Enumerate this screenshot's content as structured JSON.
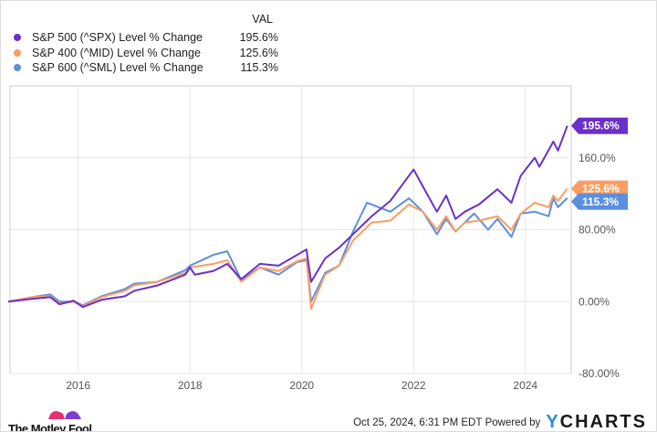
{
  "legend": {
    "header": "VAL"
  },
  "footer": {
    "brand": "The Motley Fool",
    "timestamp": "Oct 25, 2024, 6:31 PM EDT",
    "powered_by": "Powered by",
    "ycharts_y": "Y",
    "ycharts_rest": "CHARTS"
  },
  "chart_data": {
    "type": "line",
    "xlim": [
      "2014-10",
      "2024-10"
    ],
    "ylim": [
      -80,
      240
    ],
    "grid": true,
    "legend_placement": "top-left",
    "x_ticks": [
      "2016",
      "2018",
      "2020",
      "2022",
      "2024"
    ],
    "y_ticks": [
      {
        "v": 160,
        "label": "160.0%"
      },
      {
        "v": 80,
        "label": "80.00%"
      },
      {
        "v": 0,
        "label": "0.00%"
      },
      {
        "v": -80,
        "label": "-80.00%"
      }
    ],
    "series": [
      {
        "name": "S&P 500 (^SPX) Level % Change",
        "value_label": "195.6%",
        "color": "#6b2fcc",
        "points": [
          [
            "2014-10",
            0
          ],
          [
            "2015-03",
            3
          ],
          [
            "2015-07",
            5
          ],
          [
            "2015-09",
            -3
          ],
          [
            "2015-12",
            1
          ],
          [
            "2016-02",
            -6
          ],
          [
            "2016-06",
            2
          ],
          [
            "2016-11",
            6
          ],
          [
            "2017-01",
            12
          ],
          [
            "2017-06",
            18
          ],
          [
            "2017-12",
            30
          ],
          [
            "2018-01",
            38
          ],
          [
            "2018-02",
            30
          ],
          [
            "2018-06",
            34
          ],
          [
            "2018-09",
            42
          ],
          [
            "2018-12",
            25
          ],
          [
            "2019-04",
            42
          ],
          [
            "2019-08",
            40
          ],
          [
            "2019-12",
            52
          ],
          [
            "2020-02",
            58
          ],
          [
            "2020-03",
            22
          ],
          [
            "2020-06",
            48
          ],
          [
            "2020-09",
            60
          ],
          [
            "2020-12",
            75
          ],
          [
            "2021-04",
            95
          ],
          [
            "2021-08",
            112
          ],
          [
            "2021-12",
            140
          ],
          [
            "2022-01",
            147
          ],
          [
            "2022-03",
            128
          ],
          [
            "2022-06",
            100
          ],
          [
            "2022-08",
            118
          ],
          [
            "2022-10",
            92
          ],
          [
            "2022-12",
            100
          ],
          [
            "2023-03",
            108
          ],
          [
            "2023-07",
            125
          ],
          [
            "2023-10",
            110
          ],
          [
            "2023-12",
            140
          ],
          [
            "2024-03",
            160
          ],
          [
            "2024-04",
            150
          ],
          [
            "2024-07",
            178
          ],
          [
            "2024-08",
            168
          ],
          [
            "2024-10",
            195.6
          ]
        ]
      },
      {
        "name": "S&P 400 (^MID) Level % Change",
        "value_label": "125.6%",
        "color": "#fb9e63",
        "points": [
          [
            "2014-10",
            0
          ],
          [
            "2015-03",
            5
          ],
          [
            "2015-07",
            6
          ],
          [
            "2015-09",
            -2
          ],
          [
            "2015-12",
            0
          ],
          [
            "2016-02",
            -5
          ],
          [
            "2016-06",
            5
          ],
          [
            "2016-11",
            12
          ],
          [
            "2017-01",
            18
          ],
          [
            "2017-06",
            22
          ],
          [
            "2017-12",
            32
          ],
          [
            "2018-01",
            38
          ],
          [
            "2018-06",
            42
          ],
          [
            "2018-09",
            46
          ],
          [
            "2018-12",
            22
          ],
          [
            "2019-04",
            38
          ],
          [
            "2019-08",
            34
          ],
          [
            "2019-12",
            45
          ],
          [
            "2020-02",
            48
          ],
          [
            "2020-03",
            -8
          ],
          [
            "2020-06",
            30
          ],
          [
            "2020-09",
            40
          ],
          [
            "2020-12",
            68
          ],
          [
            "2021-04",
            88
          ],
          [
            "2021-08",
            90
          ],
          [
            "2021-12",
            108
          ],
          [
            "2022-03",
            100
          ],
          [
            "2022-06",
            80
          ],
          [
            "2022-08",
            95
          ],
          [
            "2022-10",
            78
          ],
          [
            "2022-12",
            88
          ],
          [
            "2023-03",
            90
          ],
          [
            "2023-07",
            95
          ],
          [
            "2023-10",
            80
          ],
          [
            "2023-12",
            98
          ],
          [
            "2024-03",
            110
          ],
          [
            "2024-06",
            105
          ],
          [
            "2024-07",
            118
          ],
          [
            "2024-08",
            112
          ],
          [
            "2024-10",
            125.6
          ]
        ]
      },
      {
        "name": "S&P 600 (^SML) Level % Change",
        "value_label": "115.3%",
        "color": "#5b8fde",
        "points": [
          [
            "2014-10",
            0
          ],
          [
            "2015-03",
            5
          ],
          [
            "2015-07",
            8
          ],
          [
            "2015-09",
            0
          ],
          [
            "2015-12",
            0
          ],
          [
            "2016-02",
            -4
          ],
          [
            "2016-06",
            6
          ],
          [
            "2016-11",
            14
          ],
          [
            "2017-01",
            20
          ],
          [
            "2017-06",
            22
          ],
          [
            "2017-12",
            35
          ],
          [
            "2018-01",
            40
          ],
          [
            "2018-06",
            52
          ],
          [
            "2018-09",
            56
          ],
          [
            "2018-12",
            24
          ],
          [
            "2019-04",
            38
          ],
          [
            "2019-08",
            30
          ],
          [
            "2019-12",
            44
          ],
          [
            "2020-02",
            46
          ],
          [
            "2020-03",
            0
          ],
          [
            "2020-06",
            32
          ],
          [
            "2020-09",
            40
          ],
          [
            "2020-12",
            78
          ],
          [
            "2021-03",
            110
          ],
          [
            "2021-08",
            100
          ],
          [
            "2021-12",
            115
          ],
          [
            "2022-03",
            100
          ],
          [
            "2022-06",
            75
          ],
          [
            "2022-08",
            92
          ],
          [
            "2022-10",
            78
          ],
          [
            "2022-12",
            88
          ],
          [
            "2023-02",
            98
          ],
          [
            "2023-05",
            80
          ],
          [
            "2023-07",
            92
          ],
          [
            "2023-10",
            72
          ],
          [
            "2023-12",
            98
          ],
          [
            "2024-03",
            100
          ],
          [
            "2024-06",
            95
          ],
          [
            "2024-07",
            115
          ],
          [
            "2024-08",
            105
          ],
          [
            "2024-10",
            115.3
          ]
        ]
      }
    ]
  }
}
